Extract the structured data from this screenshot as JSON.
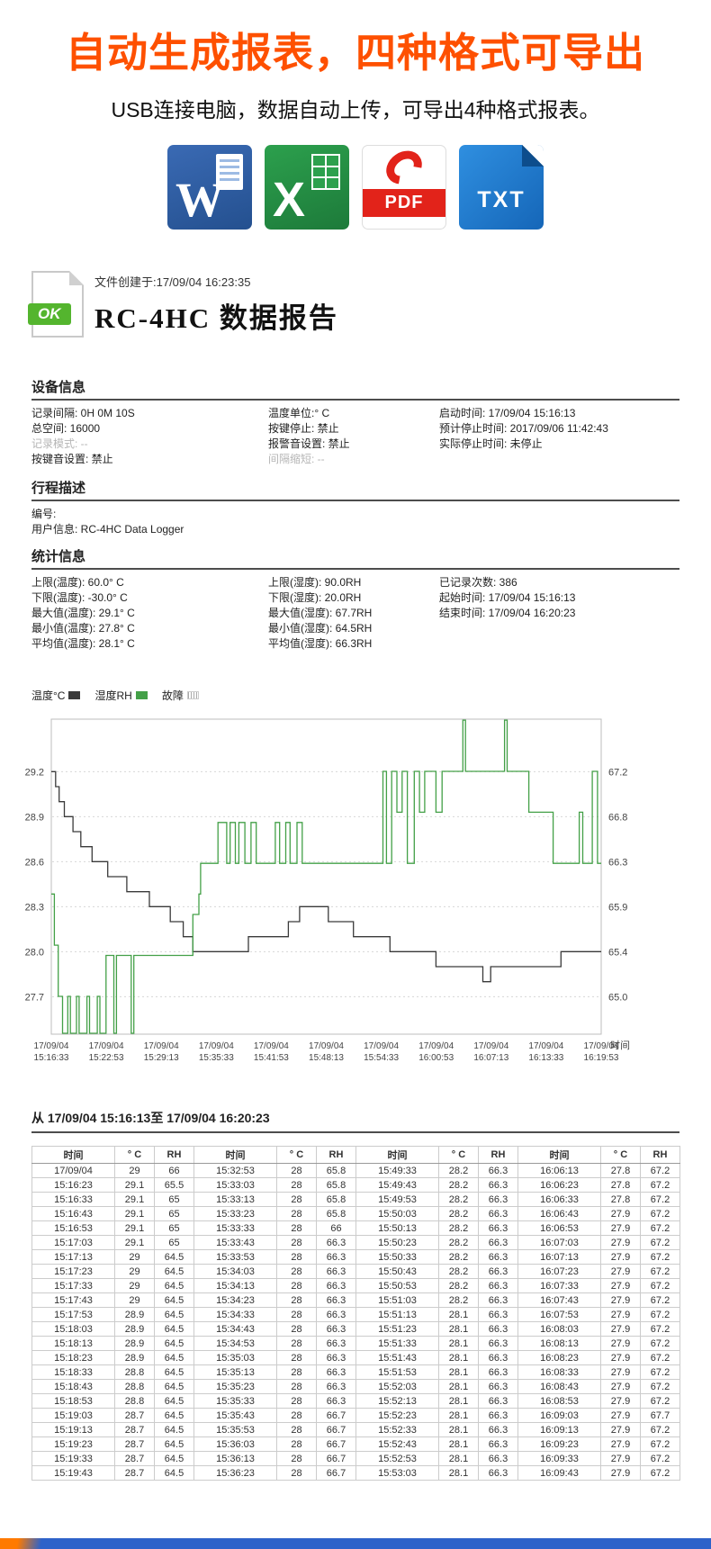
{
  "colors": {
    "accent_orange": "#fe5000",
    "word_blue": "#2a5da8",
    "excel_green": "#2ca04d",
    "pdf_red": "#e2231a",
    "txt_blue": "#1f7fd0",
    "ok_green": "#54b52e",
    "temperature_line": "#3a3a3a",
    "humidity_line": "#43a047",
    "fault_grey": "#aaaaaa",
    "bottom_bar_blue": "#2e62c9"
  },
  "header": {
    "title": "自动生成报表，四种格式可导出",
    "subtitle": "USB连接电脑，数据自动上传，可导出4种格式报表。"
  },
  "format_icons": [
    {
      "name": "word",
      "label": "W"
    },
    {
      "name": "excel",
      "label": "X"
    },
    {
      "name": "pdf",
      "label": "PDF"
    },
    {
      "name": "txt",
      "label": "TXT"
    }
  ],
  "report": {
    "created": "文件创建于:17/09/04 16:23:35",
    "title": "RC-4HC 数据报告",
    "ok_label": "OK",
    "device_info": {
      "heading": "设备信息",
      "rows": [
        [
          {
            "t": "记录间隔: 0H 0M 10S"
          },
          {
            "t": "温度单位:° C"
          },
          {
            "t": "启动时间: 17/09/04 15:16:13"
          }
        ],
        [
          {
            "t": "总空间: 16000"
          },
          {
            "t": "按键停止: 禁止"
          },
          {
            "t": "预计停止时间: 2017/09/06 11:42:43"
          }
        ],
        [
          {
            "t": "记录模式: --",
            "muted": true
          },
          {
            "t": "报警音设置: 禁止"
          },
          {
            "t": "实际停止时间: 未停止"
          }
        ],
        [
          {
            "t": "按键音设置: 禁止"
          },
          {
            "t": "间隔缩短: --",
            "muted": true
          },
          {
            "t": ""
          }
        ]
      ]
    },
    "trip": {
      "heading": "行程描述",
      "rows": [
        [
          {
            "t": "编号:"
          }
        ],
        [
          {
            "t": "用户信息: RC-4HC Data Logger"
          }
        ]
      ]
    },
    "stats": {
      "heading": "统计信息",
      "rows": [
        [
          {
            "t": "上限(温度): 60.0° C"
          },
          {
            "t": "上限(湿度): 90.0RH"
          },
          {
            "t": "已记录次数: 386"
          }
        ],
        [
          {
            "t": "下限(温度): -30.0° C"
          },
          {
            "t": "下限(湿度): 20.0RH"
          },
          {
            "t": "起始时间: 17/09/04 15:16:13"
          }
        ],
        [
          {
            "t": "最大值(温度): 29.1° C"
          },
          {
            "t": "最大值(湿度): 67.7RH"
          },
          {
            "t": "结束时间: 17/09/04 16:20:23"
          }
        ],
        [
          {
            "t": "最小值(温度): 27.8° C"
          },
          {
            "t": "最小值(湿度): 64.5RH"
          },
          {
            "t": ""
          }
        ],
        [
          {
            "t": "平均值(温度): 28.1° C"
          },
          {
            "t": "平均值(湿度): 66.3RH"
          },
          {
            "t": ""
          }
        ]
      ]
    }
  },
  "chart_data": {
    "type": "line",
    "title": "",
    "xlabel": "时间",
    "legend": [
      {
        "label": "温度°C",
        "color": "#3a3a3a"
      },
      {
        "label": "湿度RH",
        "color": "#43a047"
      },
      {
        "label": "故障",
        "color": "#aaaaaa",
        "hatched": true
      }
    ],
    "left_axis": {
      "name": "temperature_C",
      "ticks": [
        29.2,
        28.9,
        28.6,
        28.3,
        28.0,
        27.7
      ],
      "min": 27.45,
      "max": 29.55
    },
    "right_axis": {
      "name": "humidity_RH",
      "ticks": [
        67.2,
        66.8,
        66.3,
        65.9,
        65.4,
        65.0
      ],
      "min": 64.63,
      "max": 67.71
    },
    "x_range_minutes": [
      0,
      63.33
    ],
    "x_ticks": [
      [
        "17/09/04",
        "15:16:33"
      ],
      [
        "17/09/04",
        "15:22:53"
      ],
      [
        "17/09/04",
        "15:29:13"
      ],
      [
        "17/09/04",
        "15:35:33"
      ],
      [
        "17/09/04",
        "15:41:53"
      ],
      [
        "17/09/04",
        "15:48:13"
      ],
      [
        "17/09/04",
        "15:54:33"
      ],
      [
        "17/09/04",
        "16:00:53"
      ],
      [
        "17/09/04",
        "16:07:13"
      ],
      [
        "17/09/04",
        "16:13:33"
      ],
      [
        "17/09/04",
        "16:19:53"
      ]
    ],
    "series": [
      {
        "name": "温度°C",
        "axis": "left",
        "color": "#3a3a3a",
        "step": true,
        "points": [
          [
            0,
            29.2
          ],
          [
            0.5,
            29.1
          ],
          [
            0.9,
            29.0
          ],
          [
            1.5,
            28.9
          ],
          [
            2.5,
            28.8
          ],
          [
            3.4,
            28.7
          ],
          [
            4.7,
            28.6
          ],
          [
            6.5,
            28.5
          ],
          [
            8.7,
            28.4
          ],
          [
            11.3,
            28.3
          ],
          [
            13.7,
            28.2
          ],
          [
            15.2,
            28.1
          ],
          [
            16.3,
            28.0
          ],
          [
            22.7,
            28.1
          ],
          [
            27.3,
            28.2
          ],
          [
            28.6,
            28.3
          ],
          [
            31.9,
            28.2
          ],
          [
            34.8,
            28.1
          ],
          [
            39.0,
            28.0
          ],
          [
            44.3,
            27.9
          ],
          [
            49.7,
            27.8
          ],
          [
            50.6,
            27.9
          ],
          [
            58.7,
            28.0
          ]
        ]
      },
      {
        "name": "湿度RH",
        "axis": "right",
        "color": "#43a047",
        "step": true,
        "points": [
          [
            0,
            66.0
          ],
          [
            0.35,
            65.5
          ],
          [
            0.8,
            65.0
          ],
          [
            1.3,
            64.5
          ],
          [
            1.9,
            65.0
          ],
          [
            2.2,
            64.5
          ],
          [
            2.9,
            65.0
          ],
          [
            3.2,
            64.5
          ],
          [
            4.1,
            65.0
          ],
          [
            4.4,
            64.5
          ],
          [
            5.3,
            65.0
          ],
          [
            5.6,
            64.5
          ],
          [
            6.3,
            65.4
          ],
          [
            7.2,
            64.5
          ],
          [
            7.5,
            65.4
          ],
          [
            9.2,
            64.5
          ],
          [
            9.5,
            65.4
          ],
          [
            16.3,
            65.8
          ],
          [
            17.0,
            66.0
          ],
          [
            17.2,
            66.3
          ],
          [
            19.2,
            66.7
          ],
          [
            20.2,
            66.3
          ],
          [
            20.6,
            66.7
          ],
          [
            21.2,
            66.3
          ],
          [
            21.6,
            66.7
          ],
          [
            22.3,
            66.3
          ],
          [
            23.0,
            66.7
          ],
          [
            23.6,
            66.3
          ],
          [
            25.8,
            66.7
          ],
          [
            26.3,
            66.3
          ],
          [
            27.0,
            66.7
          ],
          [
            27.5,
            66.3
          ],
          [
            28.3,
            66.7
          ],
          [
            28.9,
            66.3
          ],
          [
            38.2,
            67.2
          ],
          [
            38.6,
            66.3
          ],
          [
            39.2,
            67.2
          ],
          [
            39.8,
            66.8
          ],
          [
            40.4,
            67.2
          ],
          [
            41.0,
            66.3
          ],
          [
            41.8,
            67.2
          ],
          [
            42.4,
            66.8
          ],
          [
            43.0,
            67.2
          ],
          [
            44.3,
            66.8
          ],
          [
            45.0,
            67.2
          ],
          [
            47.4,
            67.7
          ],
          [
            47.7,
            67.2
          ],
          [
            52.2,
            67.7
          ],
          [
            52.5,
            67.2
          ],
          [
            55.0,
            66.8
          ],
          [
            57.8,
            66.3
          ],
          [
            60.8,
            66.8
          ],
          [
            61.2,
            66.3
          ],
          [
            62.3,
            67.2
          ],
          [
            62.9,
            66.3
          ]
        ]
      }
    ]
  },
  "table": {
    "title": "从 17/09/04 15:16:13至 17/09/04 16:20:23",
    "groups": [
      {
        "header": [
          "时间",
          "° C",
          "RH"
        ],
        "rows": [
          [
            "17/09/04",
            "29",
            "66"
          ],
          [
            "15:16:23",
            "29.1",
            "65.5"
          ],
          [
            "15:16:33",
            "29.1",
            "65"
          ],
          [
            "15:16:43",
            "29.1",
            "65"
          ],
          [
            "15:16:53",
            "29.1",
            "65"
          ],
          [
            "15:17:03",
            "29.1",
            "65"
          ],
          [
            "15:17:13",
            "29",
            "64.5"
          ],
          [
            "15:17:23",
            "29",
            "64.5"
          ],
          [
            "15:17:33",
            "29",
            "64.5"
          ],
          [
            "15:17:43",
            "29",
            "64.5"
          ],
          [
            "15:17:53",
            "28.9",
            "64.5"
          ],
          [
            "15:18:03",
            "28.9",
            "64.5"
          ],
          [
            "15:18:13",
            "28.9",
            "64.5"
          ],
          [
            "15:18:23",
            "28.9",
            "64.5"
          ],
          [
            "15:18:33",
            "28.8",
            "64.5"
          ],
          [
            "15:18:43",
            "28.8",
            "64.5"
          ],
          [
            "15:18:53",
            "28.8",
            "64.5"
          ],
          [
            "15:19:03",
            "28.7",
            "64.5"
          ],
          [
            "15:19:13",
            "28.7",
            "64.5"
          ],
          [
            "15:19:23",
            "28.7",
            "64.5"
          ],
          [
            "15:19:33",
            "28.7",
            "64.5"
          ],
          [
            "15:19:43",
            "28.7",
            "64.5"
          ]
        ]
      },
      {
        "header": [
          "时间",
          "° C",
          "RH"
        ],
        "rows": [
          [
            "15:32:53",
            "28",
            "65.8"
          ],
          [
            "15:33:03",
            "28",
            "65.8"
          ],
          [
            "15:33:13",
            "28",
            "65.8"
          ],
          [
            "15:33:23",
            "28",
            "65.8"
          ],
          [
            "15:33:33",
            "28",
            "66"
          ],
          [
            "15:33:43",
            "28",
            "66.3"
          ],
          [
            "15:33:53",
            "28",
            "66.3"
          ],
          [
            "15:34:03",
            "28",
            "66.3"
          ],
          [
            "15:34:13",
            "28",
            "66.3"
          ],
          [
            "15:34:23",
            "28",
            "66.3"
          ],
          [
            "15:34:33",
            "28",
            "66.3"
          ],
          [
            "15:34:43",
            "28",
            "66.3"
          ],
          [
            "15:34:53",
            "28",
            "66.3"
          ],
          [
            "15:35:03",
            "28",
            "66.3"
          ],
          [
            "15:35:13",
            "28",
            "66.3"
          ],
          [
            "15:35:23",
            "28",
            "66.3"
          ],
          [
            "15:35:33",
            "28",
            "66.3"
          ],
          [
            "15:35:43",
            "28",
            "66.7"
          ],
          [
            "15:35:53",
            "28",
            "66.7"
          ],
          [
            "15:36:03",
            "28",
            "66.7"
          ],
          [
            "15:36:13",
            "28",
            "66.7"
          ],
          [
            "15:36:23",
            "28",
            "66.7"
          ]
        ]
      },
      {
        "header": [
          "时间",
          "° C",
          "RH"
        ],
        "rows": [
          [
            "15:49:33",
            "28.2",
            "66.3"
          ],
          [
            "15:49:43",
            "28.2",
            "66.3"
          ],
          [
            "15:49:53",
            "28.2",
            "66.3"
          ],
          [
            "15:50:03",
            "28.2",
            "66.3"
          ],
          [
            "15:50:13",
            "28.2",
            "66.3"
          ],
          [
            "15:50:23",
            "28.2",
            "66.3"
          ],
          [
            "15:50:33",
            "28.2",
            "66.3"
          ],
          [
            "15:50:43",
            "28.2",
            "66.3"
          ],
          [
            "15:50:53",
            "28.2",
            "66.3"
          ],
          [
            "15:51:03",
            "28.2",
            "66.3"
          ],
          [
            "15:51:13",
            "28.1",
            "66.3"
          ],
          [
            "15:51:23",
            "28.1",
            "66.3"
          ],
          [
            "15:51:33",
            "28.1",
            "66.3"
          ],
          [
            "15:51:43",
            "28.1",
            "66.3"
          ],
          [
            "15:51:53",
            "28.1",
            "66.3"
          ],
          [
            "15:52:03",
            "28.1",
            "66.3"
          ],
          [
            "15:52:13",
            "28.1",
            "66.3"
          ],
          [
            "15:52:23",
            "28.1",
            "66.3"
          ],
          [
            "15:52:33",
            "28.1",
            "66.3"
          ],
          [
            "15:52:43",
            "28.1",
            "66.3"
          ],
          [
            "15:52:53",
            "28.1",
            "66.3"
          ],
          [
            "15:53:03",
            "28.1",
            "66.3"
          ]
        ]
      },
      {
        "header": [
          "时间",
          "° C",
          "RH"
        ],
        "rows": [
          [
            "16:06:13",
            "27.8",
            "67.2"
          ],
          [
            "16:06:23",
            "27.8",
            "67.2"
          ],
          [
            "16:06:33",
            "27.8",
            "67.2"
          ],
          [
            "16:06:43",
            "27.9",
            "67.2"
          ],
          [
            "16:06:53",
            "27.9",
            "67.2"
          ],
          [
            "16:07:03",
            "27.9",
            "67.2"
          ],
          [
            "16:07:13",
            "27.9",
            "67.2"
          ],
          [
            "16:07:23",
            "27.9",
            "67.2"
          ],
          [
            "16:07:33",
            "27.9",
            "67.2"
          ],
          [
            "16:07:43",
            "27.9",
            "67.2"
          ],
          [
            "16:07:53",
            "27.9",
            "67.2"
          ],
          [
            "16:08:03",
            "27.9",
            "67.2"
          ],
          [
            "16:08:13",
            "27.9",
            "67.2"
          ],
          [
            "16:08:23",
            "27.9",
            "67.2"
          ],
          [
            "16:08:33",
            "27.9",
            "67.2"
          ],
          [
            "16:08:43",
            "27.9",
            "67.2"
          ],
          [
            "16:08:53",
            "27.9",
            "67.2"
          ],
          [
            "16:09:03",
            "27.9",
            "67.7"
          ],
          [
            "16:09:13",
            "27.9",
            "67.2"
          ],
          [
            "16:09:23",
            "27.9",
            "67.2"
          ],
          [
            "16:09:33",
            "27.9",
            "67.2"
          ],
          [
            "16:09:43",
            "27.9",
            "67.2"
          ]
        ]
      }
    ]
  }
}
